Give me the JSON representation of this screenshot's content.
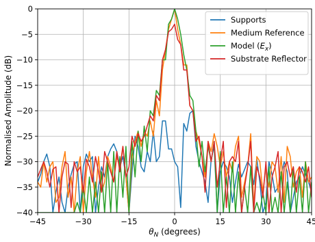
{
  "chart_data": {
    "type": "line",
    "title": "",
    "xlabel": "θ_N (degrees)",
    "ylabel": "Normalised Amplitude (dB)",
    "xlim": [
      -45,
      45
    ],
    "ylim": [
      -40,
      0
    ],
    "xticks": [
      -45,
      -30,
      -15,
      0,
      15,
      30,
      45
    ],
    "yticks": [
      0,
      -5,
      -10,
      -15,
      -20,
      -25,
      -30,
      -35,
      -40
    ],
    "grid": true,
    "legend_position": "top-right",
    "series": [
      {
        "name": "Supports",
        "color": "#1f77b4",
        "x": [
          -45,
          -44,
          -43,
          -42,
          -41,
          -40,
          -39,
          -38,
          -37,
          -36,
          -35,
          -34,
          -33,
          -32,
          -31,
          -30,
          -29,
          -28,
          -27,
          -26,
          -25,
          -24,
          -23,
          -22,
          -21,
          -20,
          -19,
          -18,
          -17,
          -16,
          -15,
          -14,
          -13,
          -12,
          -11,
          -10,
          -9,
          -8,
          -7,
          -6,
          -5,
          -4,
          -3,
          -2,
          -1,
          0,
          1,
          2,
          3,
          4,
          5,
          6,
          7,
          8,
          9,
          10,
          11,
          12,
          13,
          14,
          15,
          16,
          17,
          18,
          19,
          20,
          21,
          22,
          23,
          24,
          25,
          26,
          27,
          28,
          29,
          30,
          31,
          32,
          33,
          34,
          35,
          36,
          37,
          38,
          39,
          40,
          41,
          42,
          43,
          44,
          45
        ],
        "y": [
          -34,
          -32.5,
          -30,
          -28.5,
          -31,
          -40,
          -36,
          -33,
          -38,
          -40,
          -35,
          -32.5,
          -30.5,
          -30,
          -40,
          -31,
          -28.5,
          -30,
          -29,
          -40,
          -35,
          -31,
          -33,
          -29,
          -27.5,
          -26.5,
          -28,
          -31,
          -29,
          -33,
          -40,
          -32,
          -25,
          -27,
          -31,
          -32,
          -28,
          -30,
          -24,
          -30,
          -29,
          -22,
          -22,
          -27.5,
          -27.5,
          -30,
          -31,
          -39,
          -22.5,
          -24,
          -20.5,
          -20,
          -27,
          -30,
          -32,
          -34,
          -38,
          -29.5,
          -27,
          -40,
          -32,
          -30,
          -31,
          -33,
          -38,
          -34,
          -30.5,
          -33,
          -31.5,
          -30,
          -31,
          -34.5,
          -29.5,
          -34,
          -40,
          -38,
          -30,
          -32.5,
          -36,
          -35,
          -32.5,
          -30,
          -32,
          -40,
          -37,
          -34,
          -33,
          -31,
          -32.5,
          -34,
          -36
        ]
      },
      {
        "name": "Medium Reference",
        "color": "#ff7f0e",
        "x": [
          -45,
          -44,
          -43,
          -42,
          -41,
          -40,
          -39,
          -38,
          -37,
          -36,
          -35,
          -34,
          -33,
          -32,
          -31,
          -30,
          -29,
          -28,
          -27,
          -26,
          -25,
          -24,
          -23,
          -22,
          -21,
          -20,
          -19,
          -18,
          -17,
          -16,
          -15,
          -14,
          -13,
          -12,
          -11,
          -10,
          -9,
          -8,
          -7,
          -6,
          -5,
          -4,
          -3,
          -2,
          -1,
          0,
          1,
          2,
          3,
          4,
          5,
          6,
          7,
          8,
          9,
          10,
          11,
          12,
          13,
          14,
          15,
          16,
          17,
          18,
          19,
          20,
          21,
          22,
          23,
          24,
          25,
          26,
          27,
          28,
          29,
          30,
          31,
          32,
          33,
          34,
          35,
          36,
          37,
          38,
          39,
          40,
          41,
          42,
          43,
          44,
          45
        ],
        "y": [
          -34,
          -35,
          -30,
          -34,
          -31,
          -30,
          -38,
          -37,
          -31,
          -28,
          -37,
          -33,
          -40,
          -32,
          -29,
          -40,
          -32,
          -28,
          -33,
          -37,
          -29,
          -36,
          -34,
          -29,
          -31,
          -34,
          -29,
          -31,
          -27,
          -33,
          -40,
          -29,
          -26,
          -24,
          -27,
          -24,
          -25,
          -22,
          -25,
          -18,
          -21,
          -12,
          -8,
          -4,
          -2,
          0,
          -4,
          -7,
          -11,
          -11,
          -19,
          -20,
          -24,
          -26,
          -29,
          -33,
          -26,
          -28,
          -24.5,
          -27,
          -31,
          -28,
          -33,
          -30,
          -32,
          -27,
          -25,
          -37,
          -34,
          -31,
          -24.5,
          -39,
          -29,
          -30,
          -36,
          -31,
          -35,
          -30,
          -31,
          -36,
          -29,
          -38,
          -27,
          -29,
          -35,
          -32,
          -31,
          -37,
          -30,
          -34,
          -33
        ]
      },
      {
        "name": "Model ($E_x$)",
        "color": "#2ca02c",
        "x": [
          -45,
          -44,
          -43,
          -42,
          -41,
          -40,
          -39,
          -38,
          -37,
          -36,
          -35,
          -34,
          -33,
          -32,
          -31,
          -30,
          -29,
          -28,
          -27,
          -26,
          -25,
          -24,
          -23,
          -22,
          -21,
          -20,
          -19,
          -18,
          -17,
          -16,
          -15,
          -14,
          -13,
          -12,
          -11,
          -10,
          -9,
          -8,
          -7,
          -6,
          -5,
          -4,
          -3,
          -2,
          -1,
          0,
          1,
          2,
          3,
          4,
          5,
          6,
          7,
          8,
          9,
          10,
          11,
          12,
          13,
          14,
          15,
          16,
          17,
          18,
          19,
          20,
          21,
          22,
          23,
          24,
          25,
          26,
          27,
          28,
          29,
          30,
          31,
          32,
          33,
          34,
          35,
          36,
          37,
          38,
          39,
          40,
          41,
          42,
          43,
          44,
          45
        ],
        "y": [
          -40,
          -40,
          -40,
          -40,
          -40,
          -40,
          -40,
          -40,
          -40,
          -40,
          -40,
          -40,
          -40,
          -38,
          -40,
          -35,
          -40,
          -33,
          -40,
          -34,
          -40,
          -32,
          -40,
          -30,
          -40,
          -28,
          -40,
          -29,
          -37,
          -27,
          -40,
          -26,
          -33,
          -24,
          -30,
          -23,
          -28,
          -20,
          -21,
          -16,
          -17,
          -10,
          -10,
          -3,
          -2,
          0,
          -2,
          -5,
          -9,
          -12,
          -17,
          -18,
          -24,
          -31,
          -26,
          -32,
          -27,
          -30,
          -26,
          -40,
          -28,
          -40,
          -33,
          -40,
          -30,
          -40,
          -32,
          -40,
          -35,
          -40,
          -31,
          -40,
          -38,
          -40,
          -36,
          -40,
          -31,
          -40,
          -37,
          -40,
          -32,
          -40,
          -34,
          -40,
          -31,
          -40,
          -33,
          -40,
          -30,
          -40,
          -34
        ]
      },
      {
        "name": "Substrate Reflector",
        "color": "#d62728",
        "x": [
          -45,
          -44,
          -43,
          -42,
          -41,
          -40,
          -39,
          -38,
          -37,
          -36,
          -35,
          -34,
          -33,
          -32,
          -31,
          -30,
          -29,
          -28,
          -27,
          -26,
          -25,
          -24,
          -23,
          -22,
          -21,
          -20,
          -19,
          -18,
          -17,
          -16,
          -15,
          -14,
          -13,
          -12,
          -11,
          -10,
          -9,
          -8,
          -7,
          -6,
          -5,
          -4,
          -3,
          -2,
          -1,
          0,
          1,
          2,
          3,
          4,
          5,
          6,
          7,
          8,
          9,
          10,
          11,
          12,
          13,
          14,
          15,
          16,
          17,
          18,
          19,
          20,
          21,
          22,
          23,
          24,
          25,
          26,
          27,
          28,
          29,
          30,
          31,
          32,
          33,
          34,
          35,
          36,
          37,
          38,
          39,
          40,
          41,
          42,
          43,
          44,
          45
        ],
        "y": [
          -33,
          -31.5,
          -30,
          -32,
          -35,
          -31.5,
          -31,
          -40,
          -33,
          -30,
          -30.5,
          -39,
          -30,
          -32,
          -31,
          -36,
          -29.5,
          -31,
          -34,
          -29,
          -32,
          -36,
          -28,
          -30,
          -32,
          -34,
          -28,
          -32,
          -27,
          -33,
          -31,
          -25,
          -27,
          -24.5,
          -26,
          -25,
          -23,
          -21,
          -22,
          -17,
          -18,
          -10,
          -8,
          -4.5,
          -4,
          -3,
          -6,
          -7,
          -12,
          -12,
          -19,
          -20,
          -26,
          -25,
          -29,
          -36,
          -26,
          -30,
          -26,
          -35,
          -30,
          -26,
          -39,
          -30,
          -29,
          -30,
          -26,
          -40,
          -35,
          -31,
          -26,
          -40,
          -31,
          -33,
          -37,
          -30,
          -40,
          -33,
          -31,
          -28,
          -40,
          -31,
          -30,
          -33,
          -31,
          -36,
          -31,
          -32,
          -34,
          -31,
          -37
        ]
      }
    ]
  }
}
